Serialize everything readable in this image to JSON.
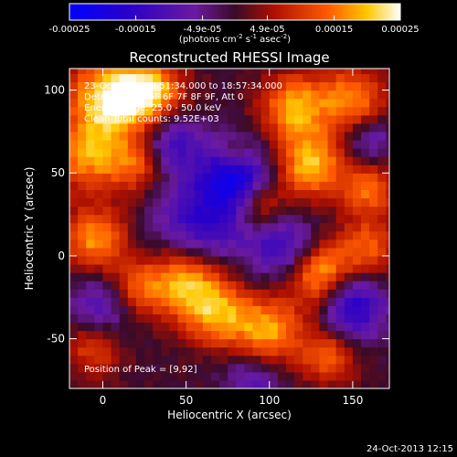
{
  "chart_data": {
    "type": "heatmap",
    "title": "Reconstructed RHESSI Image",
    "xlabel": "Heliocentric X (arcsec)",
    "ylabel": "Heliocentric Y (arcsec)",
    "xlim": [
      -20,
      172
    ],
    "ylim": [
      -80,
      113
    ],
    "xticks": [
      0,
      50,
      100,
      150
    ],
    "yticks": [
      -50,
      0,
      50,
      100
    ],
    "colorbar": {
      "min": -0.00025,
      "max": 0.00025,
      "tick_values": [
        -0.00025,
        -0.00015,
        -4.9e-05,
        4.9e-05,
        0.00015,
        0.00025
      ],
      "tick_labels": [
        "-0.00025",
        "-0.00015",
        "-4.9e-05",
        "4.9e-05",
        "0.00015",
        "0.00025"
      ],
      "unit_parts": [
        "(photons cm",
        "-2",
        " s",
        "-1",
        " asec",
        "-2",
        ")"
      ]
    },
    "annotations": [
      "23-Oct-2013 18:51:34.000 to 18:57:34.000",
      "Detectors: 3F 5F 6F 7F 8F 9F, Att 0",
      "Energy range: 25.0 - 50.0 keV",
      "Clean    Total counts: 9.52E+03"
    ],
    "peak_label": "Position of Peak = [9,92]",
    "peak": [
      9,
      92
    ],
    "grid": false,
    "blobs": [
      {
        "x": 5,
        "y": 95,
        "v": 0.00024,
        "s": 18
      },
      {
        "x": 30,
        "y": 98,
        "v": 0.00018,
        "s": 14
      },
      {
        "x": -10,
        "y": 60,
        "v": 0.00016,
        "s": 14
      },
      {
        "x": 20,
        "y": 55,
        "v": 0.00014,
        "s": 12
      },
      {
        "x": 115,
        "y": 90,
        "v": 0.00019,
        "s": 14
      },
      {
        "x": 150,
        "y": 95,
        "v": 0.00016,
        "s": 14
      },
      {
        "x": 125,
        "y": 55,
        "v": 0.0002,
        "s": 14
      },
      {
        "x": 160,
        "y": 40,
        "v": 0.00014,
        "s": 12
      },
      {
        "x": 95,
        "y": 30,
        "v": 0.00012,
        "s": 10
      },
      {
        "x": -5,
        "y": 10,
        "v": 0.00017,
        "s": 14
      },
      {
        "x": 20,
        "y": -20,
        "v": 0.00013,
        "s": 12
      },
      {
        "x": 50,
        "y": -15,
        "v": 0.0002,
        "s": 16
      },
      {
        "x": 70,
        "y": -35,
        "v": 0.00016,
        "s": 14
      },
      {
        "x": 100,
        "y": -45,
        "v": 0.00018,
        "s": 14
      },
      {
        "x": 130,
        "y": -10,
        "v": 0.00021,
        "s": 14
      },
      {
        "x": 160,
        "y": 5,
        "v": 0.00013,
        "s": 12
      },
      {
        "x": 135,
        "y": -60,
        "v": 0.00014,
        "s": 12
      },
      {
        "x": -5,
        "y": -55,
        "v": 0.00012,
        "s": 12
      },
      {
        "x": 80,
        "y": 60,
        "v": 9e-05,
        "s": 8
      },
      {
        "x": 60,
        "y": 20,
        "v": -0.00016,
        "s": 20
      },
      {
        "x": 80,
        "y": 50,
        "v": -0.0002,
        "s": 14
      },
      {
        "x": 40,
        "y": 70,
        "v": -0.00014,
        "s": 14
      },
      {
        "x": 150,
        "y": -30,
        "v": -0.00018,
        "s": 14
      },
      {
        "x": 110,
        "y": 5,
        "v": -0.00015,
        "s": 14
      },
      {
        "x": 0,
        "y": -30,
        "v": -0.00012,
        "s": 14
      },
      {
        "x": 160,
        "y": 70,
        "v": -0.0001,
        "s": 10
      },
      {
        "x": 90,
        "y": -75,
        "v": -0.0001,
        "s": 12
      }
    ]
  },
  "footer_date": "24-Oct-2013 12:15"
}
